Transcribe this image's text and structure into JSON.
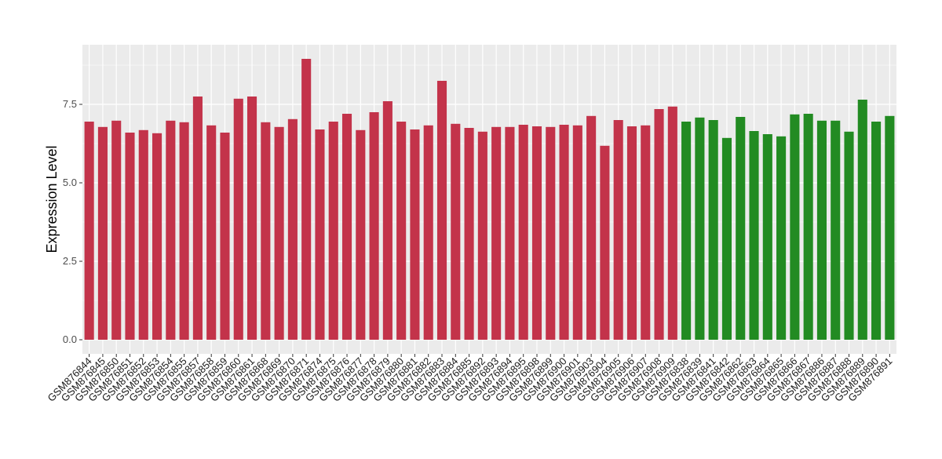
{
  "chart_data": {
    "type": "bar",
    "title": "",
    "xlabel": "",
    "ylabel": "Expression Level",
    "ylim": [
      -0.45,
      9.4
    ],
    "yticks": [
      "0.0",
      "2.5",
      "5.0",
      "7.5"
    ],
    "ytick_values": [
      0,
      2.5,
      5,
      7.5
    ],
    "grid": true,
    "colors": {
      "group1": "#C3334A",
      "group2": "#228B22",
      "panel": "#EBEBEB",
      "grid": "#FFFFFF"
    },
    "categories": [
      "GSM876844",
      "GSM876845",
      "GSM876850",
      "GSM876851",
      "GSM876852",
      "GSM876853",
      "GSM876854",
      "GSM876855",
      "GSM876857",
      "GSM876858",
      "GSM876859",
      "GSM876860",
      "GSM876861",
      "GSM876868",
      "GSM876869",
      "GSM876870",
      "GSM876871",
      "GSM876874",
      "GSM876875",
      "GSM876876",
      "GSM876877",
      "GSM876878",
      "GSM876879",
      "GSM876880",
      "GSM876881",
      "GSM876882",
      "GSM876883",
      "GSM876884",
      "GSM876885",
      "GSM876892",
      "GSM876893",
      "GSM876894",
      "GSM876895",
      "GSM876898",
      "GSM876899",
      "GSM876900",
      "GSM876901",
      "GSM876903",
      "GSM876904",
      "GSM876905",
      "GSM876906",
      "GSM876907",
      "GSM876908",
      "GSM876909",
      "GSM876838",
      "GSM876839",
      "GSM876841",
      "GSM876842",
      "GSM876862",
      "GSM876863",
      "GSM876864",
      "GSM876865",
      "GSM876866",
      "GSM876867",
      "GSM876886",
      "GSM876887",
      "GSM876888",
      "GSM876889",
      "GSM876890",
      "GSM876891"
    ],
    "values": [
      6.95,
      6.78,
      6.98,
      6.6,
      6.68,
      6.58,
      6.98,
      6.93,
      7.75,
      6.83,
      6.6,
      7.68,
      7.75,
      6.93,
      6.78,
      7.03,
      8.95,
      6.7,
      6.95,
      7.2,
      6.68,
      7.25,
      7.6,
      6.95,
      6.7,
      6.83,
      8.25,
      6.88,
      6.75,
      6.63,
      6.78,
      6.78,
      6.85,
      6.8,
      6.78,
      6.85,
      6.83,
      7.13,
      6.18,
      7.0,
      6.8,
      6.83,
      7.35,
      7.43,
      6.95,
      7.08,
      7.0,
      6.43,
      7.1,
      6.65,
      6.55,
      6.48,
      7.18,
      7.2,
      6.98,
      6.98,
      6.63,
      7.65,
      6.95,
      7.13
    ],
    "groups": [
      "group1",
      "group1",
      "group1",
      "group1",
      "group1",
      "group1",
      "group1",
      "group1",
      "group1",
      "group1",
      "group1",
      "group1",
      "group1",
      "group1",
      "group1",
      "group1",
      "group1",
      "group1",
      "group1",
      "group1",
      "group1",
      "group1",
      "group1",
      "group1",
      "group1",
      "group1",
      "group1",
      "group1",
      "group1",
      "group1",
      "group1",
      "group1",
      "group1",
      "group1",
      "group1",
      "group1",
      "group1",
      "group1",
      "group1",
      "group1",
      "group1",
      "group1",
      "group1",
      "group1",
      "group2",
      "group2",
      "group2",
      "group2",
      "group2",
      "group2",
      "group2",
      "group2",
      "group2",
      "group2",
      "group2",
      "group2",
      "group2",
      "group2",
      "group2",
      "group2"
    ]
  }
}
